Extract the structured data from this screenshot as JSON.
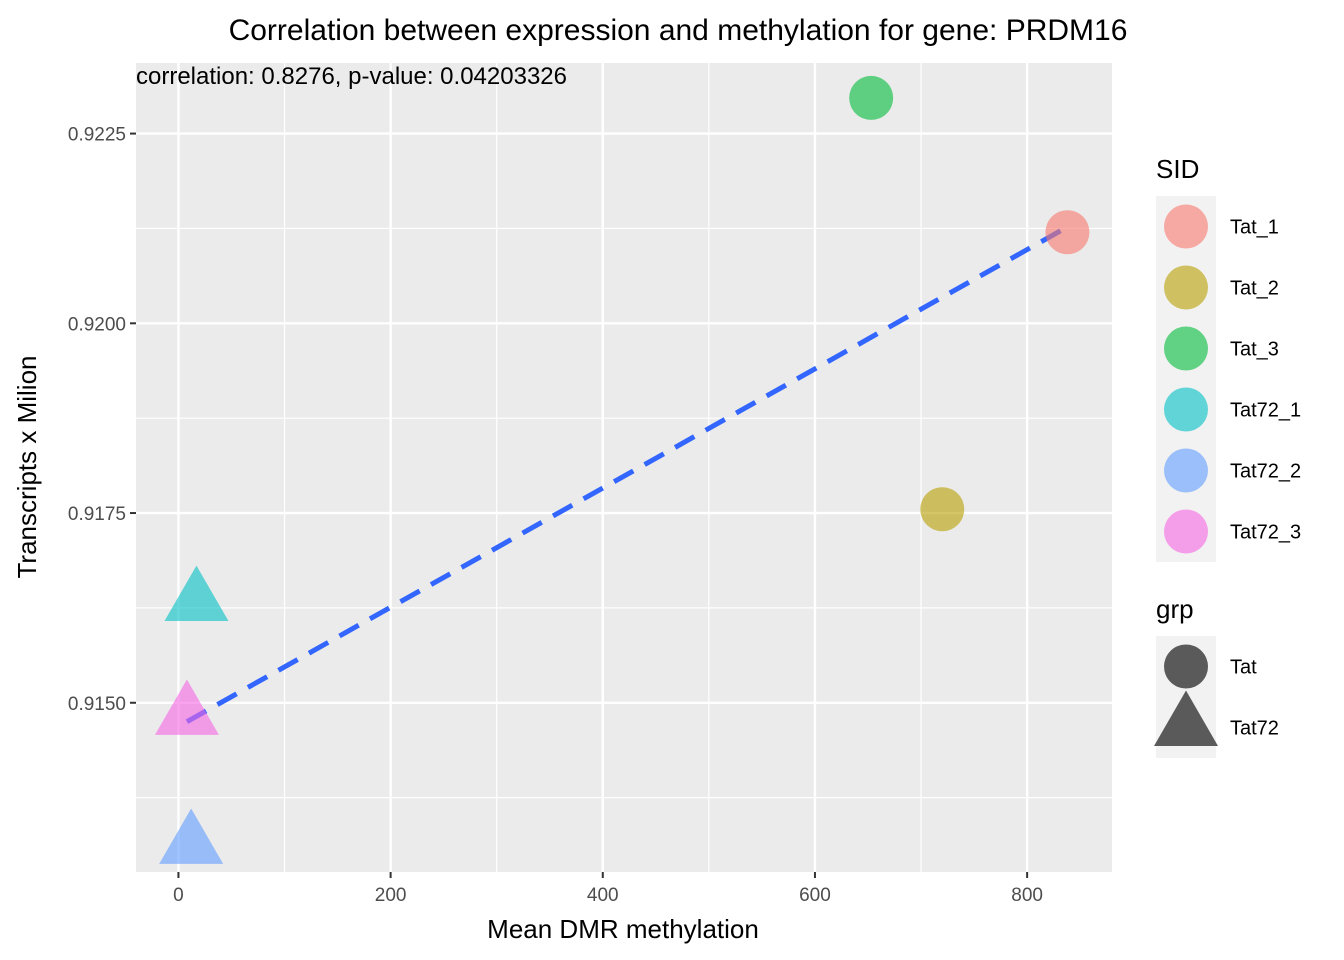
{
  "chart_data": {
    "type": "scatter",
    "title": "Correlation between expression and methylation for gene: PRDM16",
    "annotation": "correlation: 0.8276, p-value: 0.04203326",
    "xlabel": "Mean DMR methylation",
    "ylabel": "Transcripts x Milion",
    "xlim": [
      -40,
      880
    ],
    "ylim": [
      0.91277,
      0.92343
    ],
    "x_ticks": [
      0,
      200,
      400,
      600,
      800
    ],
    "x_tick_labels": [
      "0",
      "200",
      "400",
      "600",
      "800"
    ],
    "y_ticks": [
      0.915,
      0.9175,
      0.92,
      0.9225
    ],
    "y_tick_labels": [
      "0.9150",
      "0.9175",
      "0.9200",
      "0.9225"
    ],
    "grid": true,
    "legend_position": "right",
    "points": [
      {
        "sid": "Tat_1",
        "grp": "Tat",
        "x": 838,
        "y": 0.9212
      },
      {
        "sid": "Tat_2",
        "grp": "Tat",
        "x": 720,
        "y": 0.91755
      },
      {
        "sid": "Tat_3",
        "grp": "Tat",
        "x": 653,
        "y": 0.92297
      },
      {
        "sid": "Tat72_1",
        "grp": "Tat72",
        "x": 17,
        "y": 0.91632
      },
      {
        "sid": "Tat72_2",
        "grp": "Tat72",
        "x": 12,
        "y": 0.91312
      },
      {
        "sid": "Tat72_3",
        "grp": "Tat72",
        "x": 8,
        "y": 0.91482
      }
    ],
    "fit_line": {
      "x": [
        8,
        838
      ],
      "y": [
        0.91475,
        0.92127
      ],
      "color": "#3366FF",
      "style": "dashed"
    },
    "legends": [
      {
        "title": "SID",
        "entries": [
          {
            "label": "Tat_1",
            "color": "#F8766D",
            "shape": "circle"
          },
          {
            "label": "Tat_2",
            "color": "#B79F00",
            "shape": "circle"
          },
          {
            "label": "Tat_3",
            "color": "#00BA38",
            "shape": "circle"
          },
          {
            "label": "Tat72_1",
            "color": "#00BFC4",
            "shape": "circle"
          },
          {
            "label": "Tat72_2",
            "color": "#619CFF",
            "shape": "circle"
          },
          {
            "label": "Tat72_3",
            "color": "#F564E3",
            "shape": "circle"
          }
        ]
      },
      {
        "title": "grp",
        "entries": [
          {
            "label": "Tat",
            "color": "#5a5a5a",
            "shape": "circle"
          },
          {
            "label": "Tat72",
            "color": "#5a5a5a",
            "shape": "triangle"
          }
        ]
      }
    ]
  }
}
